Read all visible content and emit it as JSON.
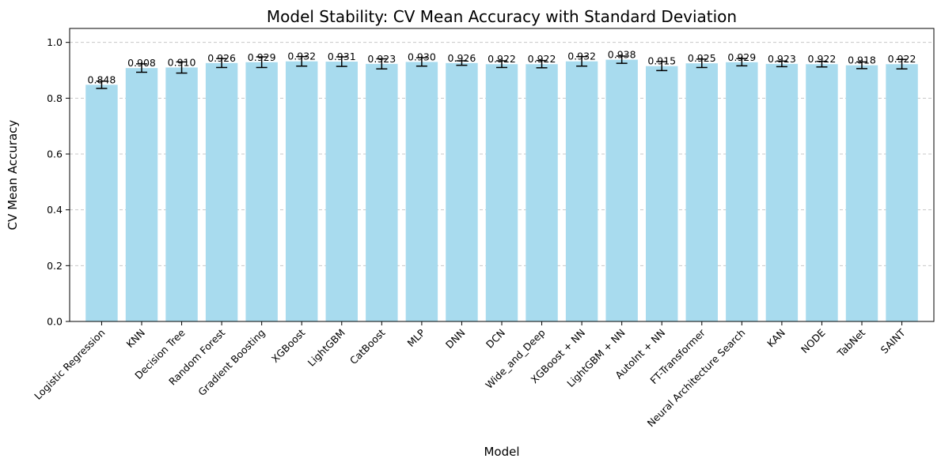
{
  "chart_data": {
    "type": "bar",
    "title": "Model Stability: CV Mean Accuracy with Standard Deviation",
    "xlabel": "Model",
    "ylabel": "CV Mean Accuracy",
    "ylim": [
      0,
      1.05
    ],
    "yticks": [
      0.0,
      0.2,
      0.4,
      0.6,
      0.8,
      1.0
    ],
    "ytick_labels": [
      "0.0",
      "0.2",
      "0.4",
      "0.6",
      "0.8",
      "1.0"
    ],
    "grid": "y-dashed",
    "bar_color": "#a8dbee",
    "errorbar_color": "#000000",
    "categories": [
      "Logistic Regression",
      "KNN",
      "Decision Tree",
      "Random Forest",
      "Gradient Boosting",
      "XGBoost",
      "LightGBM",
      "CatBoost",
      "MLP",
      "DNN",
      "DCN",
      "Wide_and_Deep",
      "XGBoost + NN",
      "LightGBM + NN",
      "AutoInt + NN",
      "FT-Transformer",
      "Neural Architecture Search",
      "KAN",
      "NODE",
      "TabNet",
      "SAINT"
    ],
    "values": [
      0.848,
      0.908,
      0.91,
      0.926,
      0.929,
      0.932,
      0.931,
      0.923,
      0.93,
      0.926,
      0.922,
      0.922,
      0.932,
      0.938,
      0.915,
      0.925,
      0.929,
      0.923,
      0.922,
      0.918,
      0.922
    ],
    "value_labels": [
      "0.848",
      "0.908",
      "0.910",
      "0.926",
      "0.929",
      "0.932",
      "0.931",
      "0.923",
      "0.930",
      "0.926",
      "0.922",
      "0.922",
      "0.932",
      "0.938",
      "0.915",
      "0.925",
      "0.929",
      "0.923",
      "0.922",
      "0.918",
      "0.922"
    ],
    "errors": [
      0.013,
      0.015,
      0.02,
      0.016,
      0.019,
      0.017,
      0.017,
      0.018,
      0.015,
      0.008,
      0.012,
      0.013,
      0.017,
      0.013,
      0.016,
      0.015,
      0.013,
      0.01,
      0.01,
      0.012,
      0.017
    ]
  }
}
